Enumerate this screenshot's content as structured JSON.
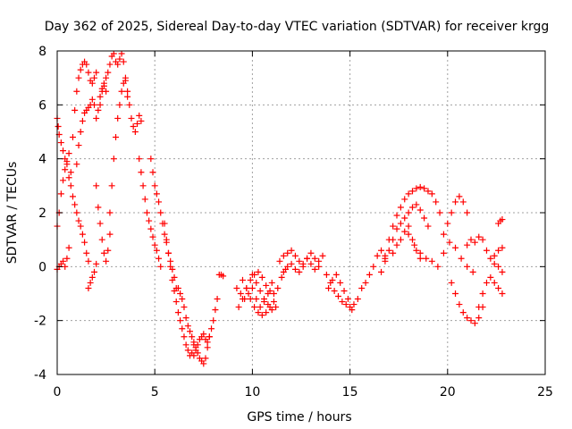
{
  "chart_data": {
    "type": "scatter",
    "title": "Day 362 of 2025, Sidereal Day-to-day VTEC variation (SDTVAR) for receiver krgg",
    "xlabel": "GPS time / hours",
    "ylabel": "SDTVAR / TECUs",
    "xlim": [
      0,
      25
    ],
    "ylim": [
      -4,
      8
    ],
    "xticks": [
      0,
      5,
      10,
      15,
      20,
      25
    ],
    "yticks": [
      -4,
      -2,
      0,
      2,
      4,
      6,
      8
    ],
    "xtick_labels": [
      "0",
      "5",
      "10",
      "15",
      "20",
      "25"
    ],
    "ytick_labels": [
      "-4",
      "-2",
      "0",
      "2",
      "4",
      "6",
      "8"
    ],
    "grid": true,
    "marker": "+",
    "series": [
      {
        "name": "SDTVAR",
        "color": "#ff0000",
        "tracks": [
          {
            "x": [
              0.0,
              0.1,
              0.2,
              0.3,
              0.4,
              0.5,
              0.6
            ],
            "y": [
              -0.1,
              0.0,
              0.1,
              0.2,
              0.0,
              0.3,
              0.7
            ]
          },
          {
            "x": [
              0.0,
              0.05,
              0.1,
              0.2,
              0.3,
              0.4,
              0.5
            ],
            "y": [
              5.5,
              5.2,
              4.9,
              4.6,
              4.3,
              4.0,
              3.8
            ]
          },
          {
            "x": [
              0.0,
              0.1,
              0.2,
              0.3,
              0.4,
              0.5,
              0.6
            ],
            "y": [
              1.5,
              2.0,
              2.7,
              3.2,
              3.6,
              3.9,
              4.2
            ]
          },
          {
            "x": [
              0.7,
              0.8,
              0.9,
              1.0,
              1.1,
              1.2,
              1.3,
              1.4,
              1.5,
              1.6,
              1.7,
              1.8,
              1.9,
              2.0
            ],
            "y": [
              3.5,
              4.8,
              5.8,
              6.5,
              7.0,
              7.3,
              7.5,
              7.6,
              7.5,
              7.2,
              6.9,
              6.8,
              7.0,
              7.2
            ]
          },
          {
            "x": [
              0.6,
              0.7,
              0.8,
              0.9,
              1.0,
              1.1,
              1.2,
              1.3,
              1.4,
              1.5,
              1.6
            ],
            "y": [
              3.3,
              3.0,
              2.6,
              2.3,
              2.0,
              1.7,
              1.5,
              1.2,
              0.9,
              0.5,
              0.2
            ]
          },
          {
            "x": [
              1.0,
              1.1,
              1.2,
              1.3,
              1.4,
              1.5,
              1.6,
              1.7,
              1.8,
              1.9,
              2.0,
              2.1,
              2.2,
              2.3,
              2.4,
              2.5
            ],
            "y": [
              3.8,
              4.5,
              5.0,
              5.4,
              5.7,
              5.8,
              5.9,
              6.0,
              6.2,
              6.0,
              5.5,
              5.8,
              6.3,
              6.6,
              6.7,
              6.5
            ]
          },
          {
            "x": [
              1.6,
              1.7,
              1.8,
              1.9,
              2.0
            ],
            "y": [
              -0.8,
              -0.6,
              -0.4,
              -0.2,
              0.1
            ]
          },
          {
            "x": [
              2.2,
              2.3,
              2.4,
              2.5,
              2.6,
              2.7,
              2.8,
              2.9,
              3.0,
              3.1,
              3.2,
              3.3,
              3.4,
              3.5,
              3.6
            ],
            "y": [
              6.0,
              6.5,
              6.8,
              7.0,
              7.2,
              7.5,
              7.8,
              7.9,
              7.6,
              7.5,
              7.7,
              7.9,
              7.6,
              7.0,
              6.3
            ]
          },
          {
            "x": [
              2.0,
              2.1,
              2.2,
              2.3,
              2.4,
              2.5,
              2.6,
              2.7
            ],
            "y": [
              3.0,
              2.2,
              1.6,
              1.0,
              0.5,
              0.2,
              0.6,
              1.2
            ]
          },
          {
            "x": [
              2.7,
              2.8,
              2.9,
              3.0,
              3.1,
              3.2,
              3.3,
              3.4
            ],
            "y": [
              2.0,
              3.0,
              4.0,
              4.8,
              5.5,
              6.0,
              6.5,
              6.8
            ]
          },
          {
            "x": [
              3.5,
              3.6,
              3.7,
              3.8,
              3.9,
              4.0,
              4.1,
              4.2,
              4.3
            ],
            "y": [
              6.9,
              6.5,
              6.0,
              5.5,
              5.2,
              5.0,
              5.3,
              5.6,
              5.4
            ]
          },
          {
            "x": [
              4.2,
              4.3,
              4.4,
              4.5,
              4.6,
              4.7,
              4.8,
              4.9,
              5.0,
              5.1,
              5.2,
              5.3
            ],
            "y": [
              4.0,
              3.5,
              3.0,
              2.5,
              2.0,
              1.7,
              1.4,
              1.1,
              0.8,
              0.6,
              0.3,
              0.0
            ]
          },
          {
            "x": [
              4.8,
              4.9,
              5.0,
              5.1,
              5.2,
              5.3,
              5.4,
              5.5,
              5.6,
              5.7,
              5.8,
              5.9,
              6.0,
              6.1
            ],
            "y": [
              4.0,
              3.5,
              3.0,
              2.7,
              2.4,
              2.0,
              1.6,
              1.2,
              0.9,
              0.5,
              0.2,
              -0.1,
              -0.4,
              -0.8
            ]
          },
          {
            "x": [
              5.5,
              5.6,
              5.7,
              5.8,
              5.9,
              6.0,
              6.1,
              6.2,
              6.3,
              6.4,
              6.5,
              6.6,
              6.7,
              6.8,
              6.9,
              7.0
            ],
            "y": [
              1.6,
              1.0,
              0.5,
              0.0,
              -0.5,
              -0.9,
              -1.3,
              -1.7,
              -2.0,
              -2.3,
              -2.6,
              -2.9,
              -3.1,
              -3.3,
              -3.2,
              -2.9
            ]
          },
          {
            "x": [
              6.2,
              6.3,
              6.4,
              6.5,
              6.6,
              6.7,
              6.8,
              6.9,
              7.0,
              7.1,
              7.2,
              7.3,
              7.4,
              7.5,
              7.6,
              7.7,
              7.8,
              7.9,
              8.0,
              8.1,
              8.2
            ],
            "y": [
              -0.8,
              -1.0,
              -1.2,
              -1.5,
              -1.9,
              -2.2,
              -2.4,
              -2.6,
              -2.8,
              -3.0,
              -3.2,
              -3.4,
              -3.5,
              -3.6,
              -3.4,
              -3.0,
              -2.6,
              -2.3,
              -2.0,
              -1.6,
              -1.2
            ]
          },
          {
            "x": [
              7.0,
              7.1,
              7.2,
              7.3,
              7.4,
              7.5,
              7.6,
              7.7,
              7.8
            ],
            "y": [
              -3.3,
              -3.1,
              -2.9,
              -2.7,
              -2.6,
              -2.5,
              -2.7,
              -2.8,
              -2.6
            ]
          },
          {
            "x": [
              8.3,
              8.4,
              8.5
            ],
            "y": [
              -0.3,
              -0.3,
              -0.35
            ]
          },
          {
            "x": [
              9.2,
              9.4,
              9.6,
              9.8,
              10.0,
              10.2,
              10.4,
              10.6,
              10.8,
              11.0
            ],
            "y": [
              -0.8,
              -1.0,
              -1.2,
              -1.0,
              -0.8,
              -1.2,
              -1.5,
              -1.3,
              -1.0,
              -0.6
            ]
          },
          {
            "x": [
              9.3,
              9.5,
              9.7,
              9.9,
              10.1,
              10.3,
              10.5,
              10.7,
              10.9,
              11.1,
              11.3,
              11.5,
              11.7
            ],
            "y": [
              -1.5,
              -1.2,
              -0.8,
              -0.5,
              -0.3,
              -0.2,
              -0.4,
              -0.7,
              -0.9,
              -1.0,
              -0.8,
              -0.4,
              -0.1
            ]
          },
          {
            "x": [
              9.5,
              9.7,
              9.9,
              10.1,
              10.3,
              10.5,
              10.7,
              10.9,
              11.1
            ],
            "y": [
              -0.5,
              -0.8,
              -1.2,
              -1.5,
              -1.7,
              -1.8,
              -1.7,
              -1.5,
              -1.3
            ]
          },
          {
            "x": [
              10.0,
              10.2,
              10.4,
              10.6,
              10.8,
              11.0,
              11.2
            ],
            "y": [
              -0.3,
              -0.6,
              -0.9,
              -1.2,
              -1.4,
              -1.6,
              -1.5
            ]
          },
          {
            "x": [
              11.4,
              11.6,
              11.8,
              12.0,
              12.2,
              12.4,
              12.6,
              12.8,
              13.0,
              13.2,
              13.4,
              13.6
            ],
            "y": [
              0.2,
              0.4,
              0.5,
              0.6,
              0.4,
              0.2,
              0.0,
              0.3,
              0.5,
              0.3,
              0.2,
              0.4
            ]
          },
          {
            "x": [
              11.6,
              11.8,
              12.0,
              12.2,
              12.4,
              12.6,
              12.8,
              13.0,
              13.2,
              13.4
            ],
            "y": [
              -0.2,
              0.0,
              0.1,
              -0.1,
              -0.2,
              0.1,
              0.3,
              0.1,
              -0.1,
              0.0
            ]
          },
          {
            "x": [
              13.8,
              14.0,
              14.2,
              14.4,
              14.6,
              14.8,
              15.0,
              15.2,
              15.4
            ],
            "y": [
              -0.3,
              -0.6,
              -0.9,
              -1.1,
              -1.3,
              -1.4,
              -1.5,
              -1.4,
              -1.2
            ]
          },
          {
            "x": [
              13.9,
              14.1,
              14.3,
              14.5,
              14.7,
              14.9,
              15.1
            ],
            "y": [
              -0.8,
              -0.5,
              -0.3,
              -0.6,
              -0.9,
              -1.2,
              -1.6
            ]
          },
          {
            "x": [
              15.6,
              15.8,
              16.0,
              16.2,
              16.4,
              16.6,
              16.8
            ],
            "y": [
              -0.8,
              -0.6,
              -0.3,
              0.0,
              0.4,
              0.6,
              0.3
            ]
          },
          {
            "x": [
              16.6,
              16.8,
              17.0,
              17.2,
              17.4,
              17.6,
              17.8,
              18.0,
              18.2,
              18.4,
              18.6,
              18.8,
              19.0,
              19.2,
              19.4,
              19.6
            ],
            "y": [
              -0.2,
              0.4,
              1.0,
              1.5,
              1.9,
              2.2,
              2.5,
              2.7,
              2.8,
              2.9,
              2.95,
              2.9,
              2.8,
              2.7,
              2.4,
              2.0
            ]
          },
          {
            "x": [
              16.8,
              17.0,
              17.2,
              17.4,
              17.6,
              17.8,
              18.0,
              18.2,
              18.4,
              18.6,
              18.8,
              19.0
            ],
            "y": [
              0.2,
              0.6,
              1.0,
              1.4,
              1.6,
              1.8,
              2.0,
              2.2,
              2.3,
              2.1,
              1.8,
              1.5
            ]
          },
          {
            "x": [
              17.2,
              17.4,
              17.6,
              17.8,
              18.0,
              18.2,
              18.4,
              18.6
            ],
            "y": [
              0.5,
              0.8,
              1.0,
              1.3,
              1.5,
              1.0,
              0.6,
              0.3
            ]
          },
          {
            "x": [
              18.0,
              18.3,
              18.6,
              18.9,
              19.2,
              19.5,
              19.8,
              20.1,
              20.4,
              20.7,
              21.0,
              21.3
            ],
            "y": [
              1.2,
              0.8,
              0.5,
              0.3,
              0.2,
              0.0,
              0.5,
              0.9,
              0.7,
              0.3,
              0.0,
              -0.2
            ]
          },
          {
            "x": [
              19.8,
              20.0,
              20.2,
              20.4,
              20.6,
              20.8,
              21.0
            ],
            "y": [
              1.2,
              1.6,
              2.0,
              2.4,
              2.6,
              2.4,
              2.0
            ]
          },
          {
            "x": [
              20.2,
              20.4,
              20.6,
              20.8,
              21.0,
              21.2,
              21.4,
              21.6,
              21.8
            ],
            "y": [
              -0.6,
              -1.0,
              -1.4,
              -1.7,
              -1.9,
              -2.0,
              -2.1,
              -1.9,
              -1.5
            ]
          },
          {
            "x": [
              21.0,
              21.2,
              21.4,
              21.6,
              21.8,
              22.0,
              22.2,
              22.4,
              22.6,
              22.8
            ],
            "y": [
              0.8,
              1.0,
              0.9,
              1.1,
              1.0,
              0.6,
              0.3,
              0.1,
              0.0,
              -0.2
            ]
          },
          {
            "x": [
              21.6,
              21.8,
              22.0,
              22.2,
              22.4,
              22.6,
              22.8
            ],
            "y": [
              -1.5,
              -1.0,
              -0.6,
              -0.4,
              -0.6,
              -0.8,
              -1.0
            ]
          },
          {
            "x": [
              22.6,
              22.7,
              22.8
            ],
            "y": [
              1.6,
              1.7,
              1.75
            ]
          },
          {
            "x": [
              22.4,
              22.6,
              22.8
            ],
            "y": [
              0.4,
              0.6,
              0.7
            ]
          }
        ]
      }
    ]
  }
}
